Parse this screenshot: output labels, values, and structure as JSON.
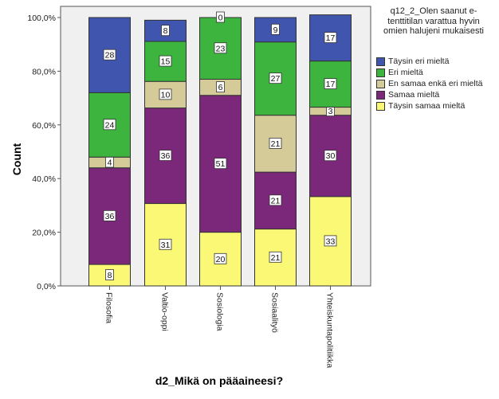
{
  "chart_data": {
    "type": "bar",
    "stacked": true,
    "categories": [
      "Filosofia",
      "Valtio-oppi",
      "Sosiologia",
      "Sosiaalityö",
      "Yhteiskuntapolitiikka"
    ],
    "series": [
      {
        "name": "Täysin samaa mieltä",
        "color": "#FBF876",
        "values": [
          8,
          31,
          20,
          21,
          33
        ],
        "percent": [
          8.0,
          30.7,
          20.0,
          21.2,
          33.3
        ]
      },
      {
        "name": "Samaa mieltä",
        "color": "#7C287A",
        "values": [
          36,
          36,
          51,
          21,
          30
        ],
        "percent": [
          36.0,
          35.6,
          51.0,
          21.2,
          30.3
        ]
      },
      {
        "name": "En samaa enkä eri mieltä",
        "color": "#D4CB98",
        "values": [
          4,
          10,
          6,
          21,
          3
        ],
        "percent": [
          4.0,
          9.9,
          6.0,
          21.2,
          3.0
        ]
      },
      {
        "name": "Eri mieltä",
        "color": "#3CB43E",
        "values": [
          24,
          15,
          23,
          27,
          17
        ],
        "percent": [
          24.0,
          14.9,
          23.0,
          27.3,
          17.2
        ]
      },
      {
        "name": "Täysin eri mieltä",
        "color": "#3F55AE",
        "values": [
          28,
          8,
          0,
          9,
          17
        ],
        "percent": [
          28.0,
          7.9,
          0.0,
          9.1,
          17.2
        ]
      }
    ],
    "ylim": [
      0,
      100
    ],
    "yticks": [
      "0,0%",
      "20,0%",
      "40,0%",
      "60,0%",
      "80,0%",
      "100,0%"
    ],
    "ylabel": "Count",
    "xlabel": "d2_Mikä on pääaineesi?",
    "legend_title": "q12_2_Olen saanut e-tenttitilan varattua hyvin omien halujeni mukaisesti",
    "legend_position": "right",
    "plot_background": "#F0F0F0",
    "grid": false
  }
}
